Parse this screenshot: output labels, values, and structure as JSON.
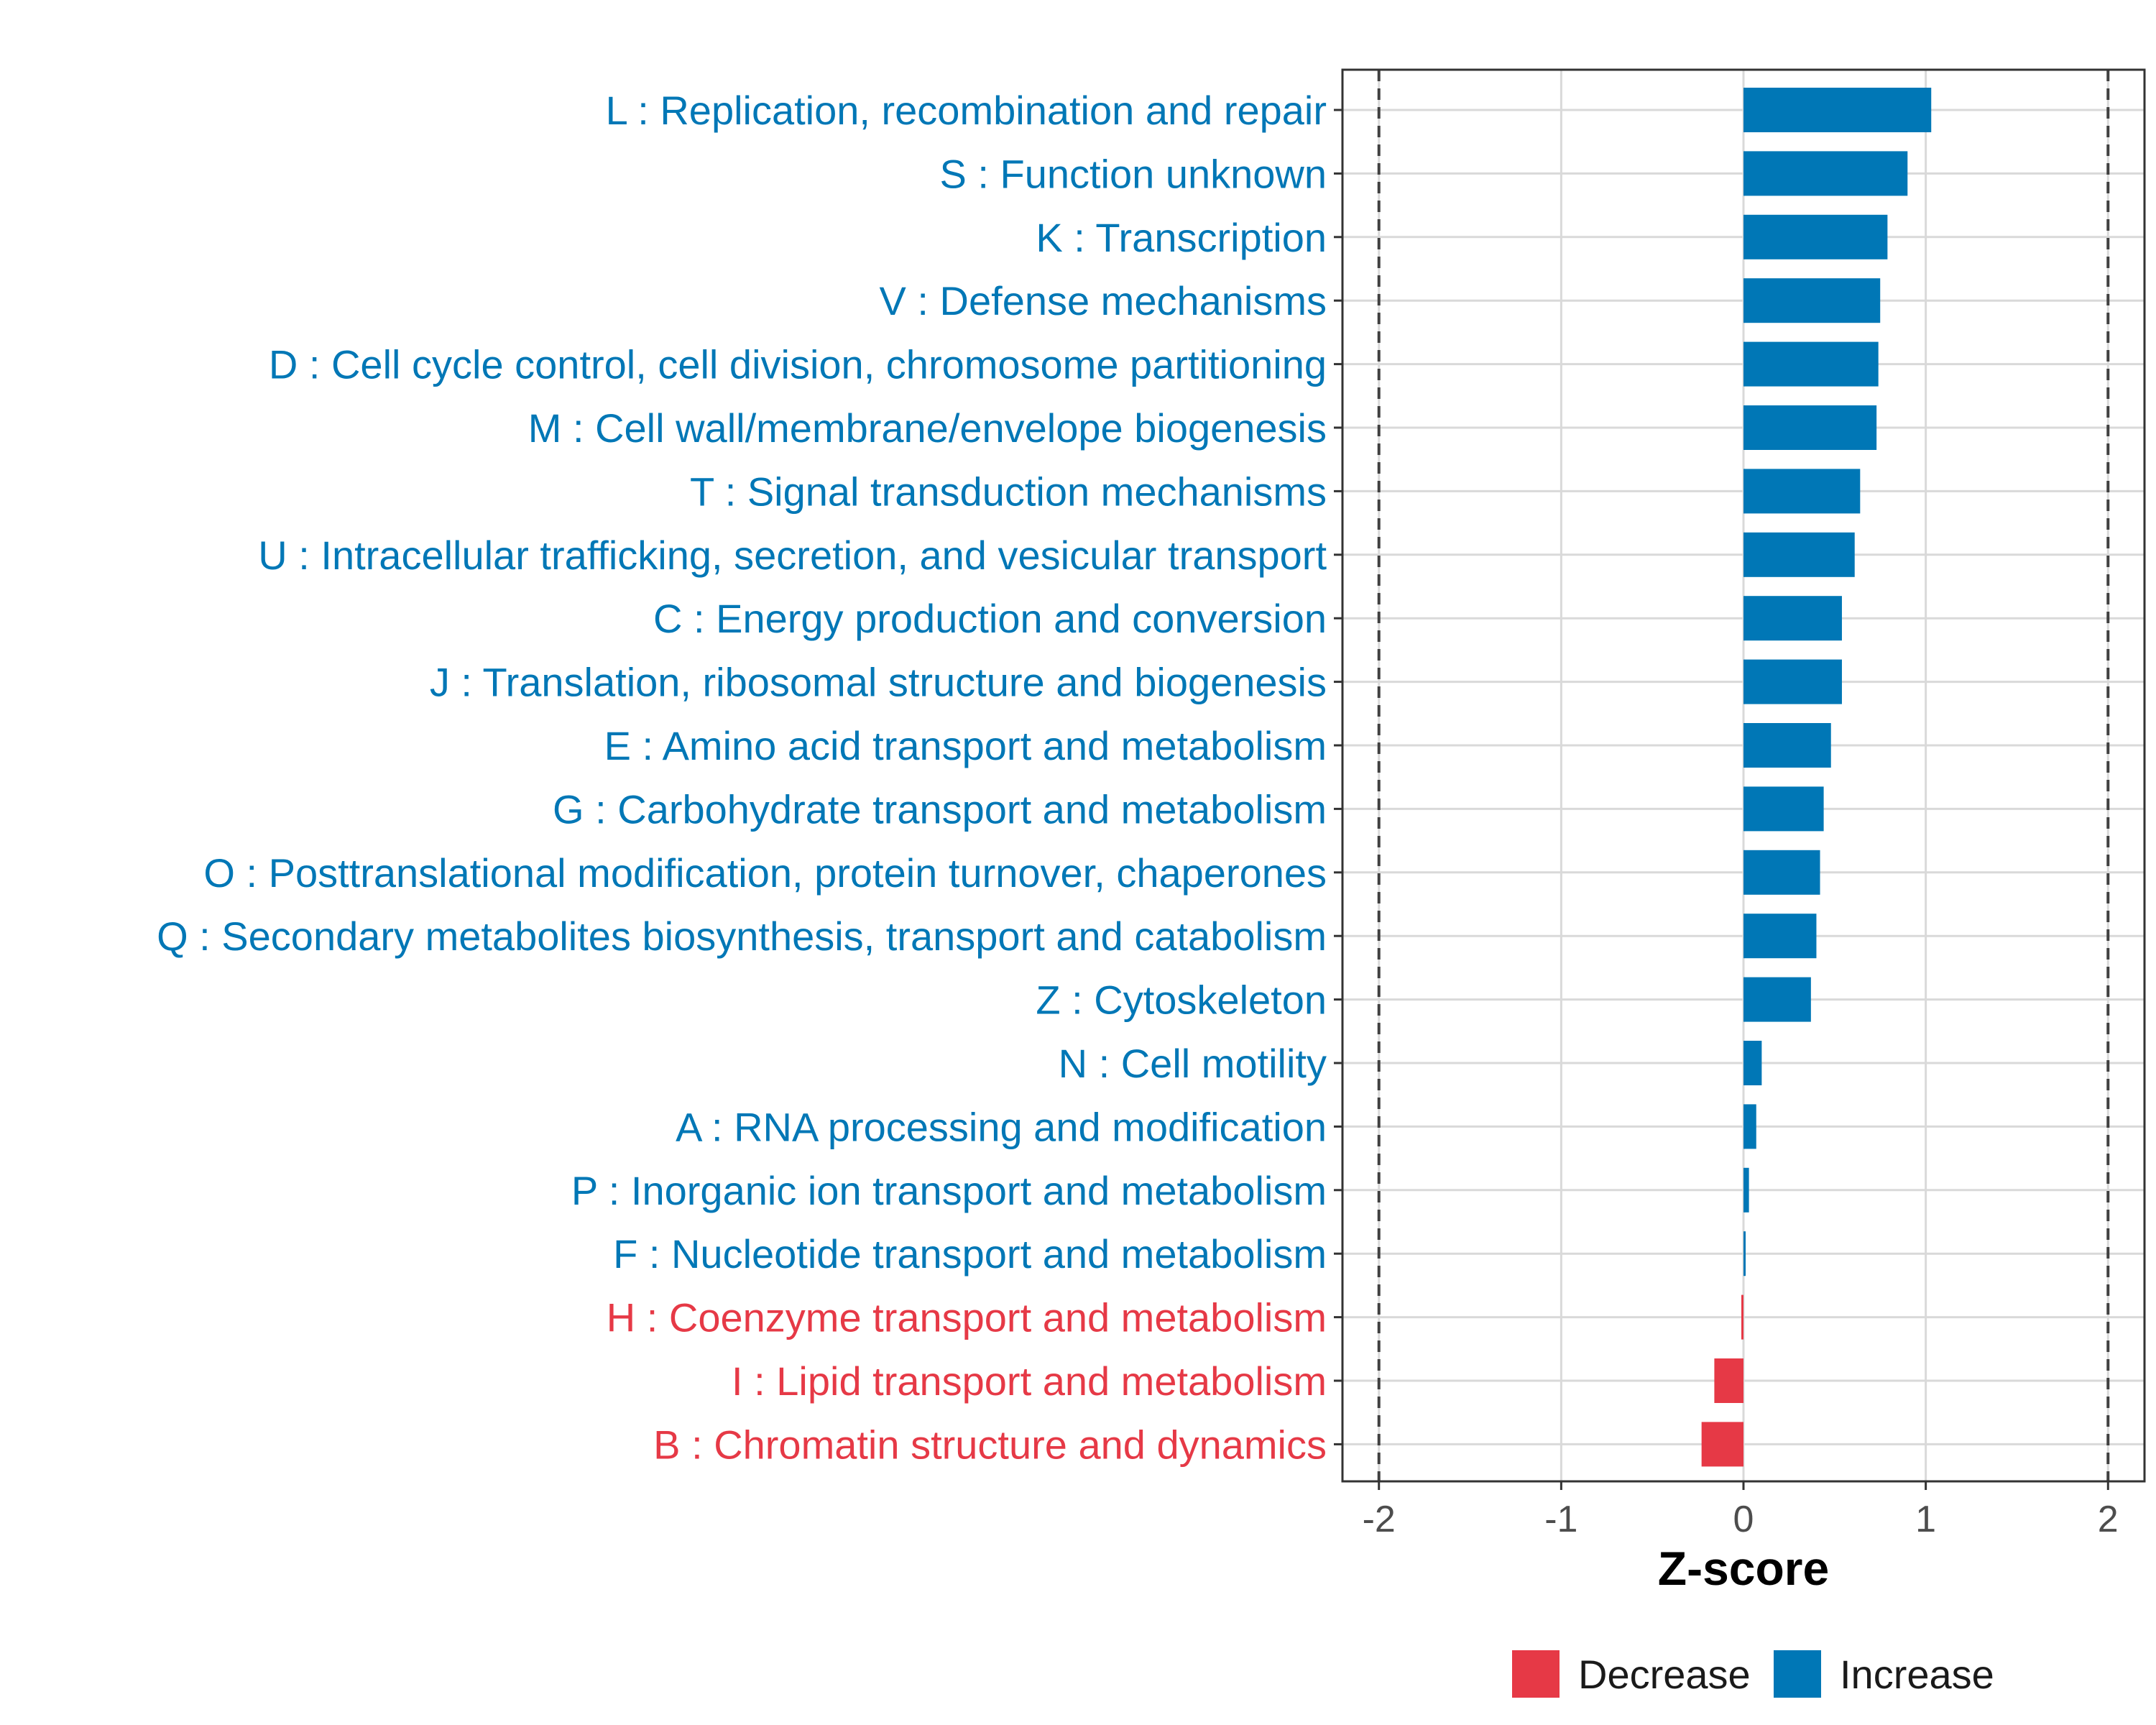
{
  "colors": {
    "increase": "#0077b6",
    "decrease": "#e63946",
    "grid": "#d9d9d9",
    "panel_border": "#333333",
    "threshold_line": "#404040"
  },
  "chart_data": {
    "type": "bar",
    "orientation": "horizontal",
    "title": "",
    "xlabel": "Z-score",
    "ylabel": "",
    "xlim": [
      -2.2,
      2.2
    ],
    "x_ticks": [
      -2,
      -1,
      0,
      1,
      2
    ],
    "x_tick_labels": [
      "-2",
      "-1",
      "0",
      "1",
      "2"
    ],
    "threshold_lines": [
      -2,
      2
    ],
    "grid": true,
    "legend_position": "bottom",
    "legend": [
      {
        "key": "decrease",
        "label": "Decrease"
      },
      {
        "key": "increase",
        "label": "Increase"
      }
    ],
    "categories": [
      "L : Replication, recombination and repair",
      "S : Function unknown",
      "K : Transcription",
      "V : Defense mechanisms",
      "D : Cell cycle control, cell division, chromosome partitioning",
      "M : Cell wall/membrane/envelope biogenesis",
      "T : Signal transduction mechanisms",
      "U : Intracellular trafficking, secretion, and vesicular transport",
      "C : Energy production and conversion",
      "J : Translation, ribosomal structure and biogenesis",
      "E : Amino acid transport and metabolism",
      "G : Carbohydrate transport and metabolism",
      "O : Posttranslational modification, protein turnover, chaperones",
      "Q : Secondary metabolites biosynthesis, transport and catabolism",
      "Z : Cytoskeleton",
      "N : Cell motility",
      "A : RNA processing and modification",
      "P : Inorganic ion transport and metabolism",
      "F : Nucleotide transport and metabolism",
      "H : Coenzyme transport and metabolism",
      "I : Lipid transport and metabolism",
      "B : Chromatin structure and dynamics"
    ],
    "values": [
      1.03,
      0.9,
      0.79,
      0.75,
      0.74,
      0.73,
      0.64,
      0.61,
      0.54,
      0.54,
      0.48,
      0.44,
      0.42,
      0.4,
      0.37,
      0.1,
      0.07,
      0.03,
      0.01,
      -0.01,
      -0.16,
      -0.23
    ]
  }
}
